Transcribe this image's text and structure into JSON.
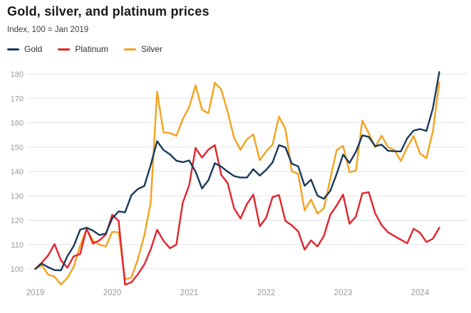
{
  "header": {
    "title": "Gold, silver, and platinum prices",
    "subtitle": "Index, 100 = Jan 2019"
  },
  "legend": [
    {
      "label": "Gold",
      "color": "#17395C"
    },
    {
      "label": "Platinum",
      "color": "#E2242D"
    },
    {
      "label": "Silver",
      "color": "#F5A11D"
    }
  ],
  "colors": {
    "grid": "#e3e3e3",
    "axis_text": "#9a9a9a",
    "title_text": "#191919",
    "background": "#ffffff"
  },
  "chart_data": {
    "type": "line",
    "title": "Gold, silver, and platinum prices",
    "subtitle": "Index, 100 = Jan 2019",
    "xlabel": "",
    "ylabel": "Index, 100 = Jan 2019",
    "grid": "horizontal",
    "legend_position": "top-left",
    "ylim": [
      90,
      185
    ],
    "y_ticks": [
      100,
      110,
      120,
      130,
      140,
      150,
      160,
      170,
      180
    ],
    "x_tick_labels": [
      "2019",
      "2020",
      "2021",
      "2022",
      "2023",
      "2024"
    ],
    "x": [
      "2019-01",
      "2019-02",
      "2019-03",
      "2019-04",
      "2019-05",
      "2019-06",
      "2019-07",
      "2019-08",
      "2019-09",
      "2019-10",
      "2019-11",
      "2019-12",
      "2020-01",
      "2020-02",
      "2020-03",
      "2020-04",
      "2020-05",
      "2020-06",
      "2020-07",
      "2020-08",
      "2020-09",
      "2020-10",
      "2020-11",
      "2020-12",
      "2021-01",
      "2021-02",
      "2021-03",
      "2021-04",
      "2021-05",
      "2021-06",
      "2021-07",
      "2021-08",
      "2021-09",
      "2021-10",
      "2021-11",
      "2021-12",
      "2022-01",
      "2022-02",
      "2022-03",
      "2022-04",
      "2022-05",
      "2022-06",
      "2022-07",
      "2022-08",
      "2022-09",
      "2022-10",
      "2022-11",
      "2022-12",
      "2023-01",
      "2023-02",
      "2023-03",
      "2023-04",
      "2023-05",
      "2023-06",
      "2023-07",
      "2023-08",
      "2023-09",
      "2023-10",
      "2023-11",
      "2023-12",
      "2024-01",
      "2024-02",
      "2024-03",
      "2024-04"
    ],
    "series": [
      {
        "name": "Gold",
        "color": "#17395C",
        "values": [
          100,
          102.2,
          100.7,
          99.5,
          99.4,
          105.2,
          109.4,
          116.1,
          116.9,
          115.7,
          113.9,
          114.5,
          120.8,
          123.6,
          123.2,
          130.3,
          132.8,
          134.0,
          142.6,
          152.4,
          148.8,
          147.0,
          144.4,
          143.8,
          144.5,
          139.9,
          133.0,
          136.4,
          143.4,
          142.0,
          139.9,
          138.1,
          137.5,
          137.5,
          140.9,
          138.3,
          140.6,
          143.7,
          150.8,
          149.9,
          143.2,
          142.1,
          134.1,
          136.6,
          130.1,
          128.8,
          132.0,
          139.0,
          146.9,
          143.5,
          148.1,
          154.8,
          154.2,
          150.4,
          151.0,
          148.5,
          148.3,
          148.2,
          153.6,
          156.8,
          157.4,
          156.6,
          165.9,
          180.8
        ]
      },
      {
        "name": "Platinum",
        "color": "#E2242D",
        "values": [
          100,
          102.5,
          105.5,
          110.2,
          103.6,
          100.5,
          105.2,
          106.1,
          116.5,
          110.4,
          111.7,
          114.1,
          122.2,
          119.7,
          93.5,
          94.5,
          97.8,
          101.8,
          108.0,
          116.1,
          111.5,
          108.5,
          110.0,
          127.2,
          134.3,
          149.6,
          145.7,
          149.0,
          150.8,
          138.6,
          135.2,
          124.9,
          120.7,
          126.6,
          130.5,
          117.5,
          121.0,
          129.5,
          130.3,
          119.7,
          117.9,
          115.4,
          107.9,
          111.7,
          109.2,
          113.5,
          122.2,
          126.0,
          130.5,
          118.5,
          121.5,
          131.0,
          131.5,
          122.8,
          118.0,
          115.0,
          113.5,
          112.0,
          110.5,
          116.5,
          114.8,
          111.0,
          112.4,
          116.9
        ]
      },
      {
        "name": "Silver",
        "color": "#F5A11D",
        "values": [
          100,
          101.5,
          97.7,
          96.8,
          93.6,
          96.3,
          100.9,
          109.4,
          116.3,
          111.6,
          110.0,
          109.2,
          115.2,
          115.0,
          95.7,
          96.5,
          104.0,
          113.7,
          127.2,
          172.7,
          156.0,
          155.8,
          154.6,
          161.5,
          166.4,
          175.4,
          165.3,
          163.9,
          176.4,
          173.7,
          164.4,
          153.8,
          148.9,
          153.2,
          155.2,
          144.6,
          148.2,
          151.0,
          162.5,
          157.5,
          140.1,
          139.0,
          124.0,
          128.5,
          122.7,
          124.8,
          137.0,
          148.8,
          150.5,
          139.7,
          140.3,
          160.9,
          155.7,
          149.9,
          154.7,
          150.0,
          148.8,
          144.3,
          149.9,
          154.5,
          147.3,
          145.5,
          156.5,
          176.6
        ]
      }
    ]
  }
}
